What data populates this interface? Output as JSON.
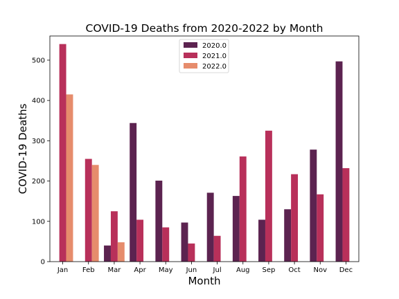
{
  "chart_data": {
    "type": "bar",
    "title": "COVID-19 Deaths from 2020-2022 by Month",
    "xlabel": "Month",
    "ylabel": "COVID-19 Deaths",
    "ylim": [
      0,
      560
    ],
    "yticks": [
      0,
      100,
      200,
      300,
      400,
      500
    ],
    "categories": [
      "Jan",
      "Feb",
      "Mar",
      "Apr",
      "May",
      "Jun",
      "Jul",
      "Aug",
      "Sep",
      "Oct",
      "Nov",
      "Dec"
    ],
    "series": [
      {
        "name": "2020.0",
        "color": "#5c2350",
        "values": [
          null,
          null,
          40,
          344,
          201,
          97,
          171,
          163,
          104,
          130,
          278,
          497
        ]
      },
      {
        "name": "2021.0",
        "color": "#b8305a",
        "values": [
          540,
          255,
          125,
          104,
          85,
          45,
          64,
          261,
          325,
          217,
          167,
          232
        ]
      },
      {
        "name": "2022.0",
        "color": "#e68c6c",
        "values": [
          415,
          240,
          48,
          null,
          null,
          null,
          null,
          null,
          null,
          null,
          null,
          null
        ]
      }
    ],
    "legend_position": "top-center",
    "grid": false
  }
}
